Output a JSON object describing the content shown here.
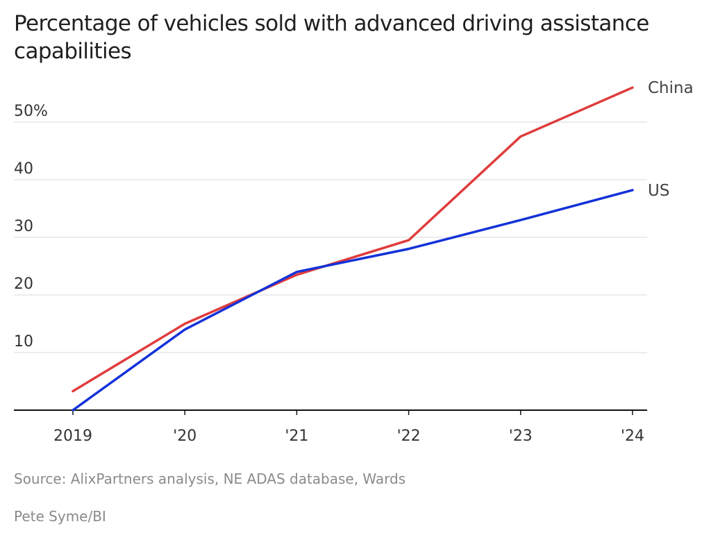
{
  "chart_data": {
    "type": "line",
    "title": "Percentage of vehicles sold with advanced driving assistance capabilities",
    "categories": [
      "2019",
      "'20",
      "'21",
      "'22",
      "'23",
      "'24"
    ],
    "xlabel": "",
    "ylabel": "",
    "ylim": [
      0,
      58
    ],
    "yticks": [
      10,
      20,
      30,
      40,
      50
    ],
    "ytick_labels": [
      "10",
      "20",
      "30",
      "40",
      "50%"
    ],
    "grid": true,
    "legend": "direct labels at line ends",
    "series": [
      {
        "name": "China",
        "color": "#e03c3c",
        "values": [
          3.3,
          15,
          23.5,
          29.5,
          47.5,
          56
        ]
      },
      {
        "name": "US",
        "color": "#1432d8",
        "values": [
          0,
          14,
          24,
          28,
          33,
          38.2
        ]
      }
    ]
  },
  "footer": {
    "source": "Source: AlixPartners analysis, NE ADAS database, Wards",
    "credit": "Pete Syme/BI"
  }
}
